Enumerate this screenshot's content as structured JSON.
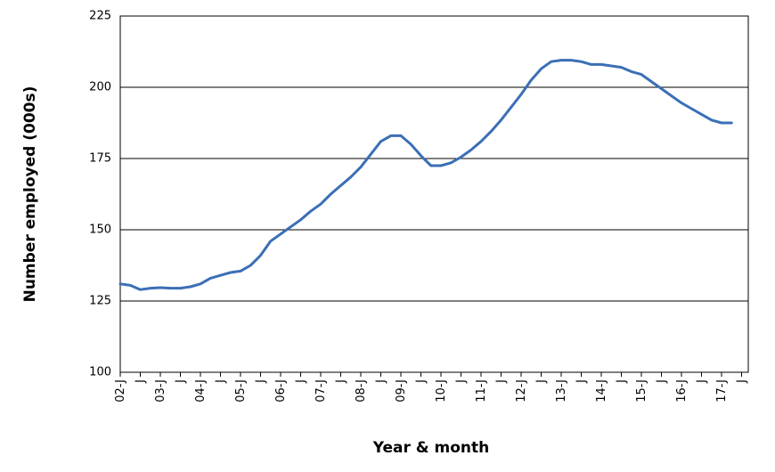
{
  "chart_data": {
    "type": "line",
    "ylabel": "Number employed (000s)",
    "xlabel": "Year & month",
    "categories": [
      "02-J",
      null,
      "J",
      null,
      "03-J",
      null,
      "J",
      null,
      "04-J",
      null,
      "J",
      null,
      "05-J",
      null,
      "J",
      null,
      "06-J",
      null,
      "J",
      null,
      "07-J",
      null,
      "J",
      null,
      "08-J",
      null,
      "J",
      null,
      "09-J",
      null,
      "J",
      null,
      "10-J",
      null,
      "J",
      null,
      "11-J",
      null,
      "J",
      null,
      "12-J",
      null,
      "J",
      null,
      "13-J",
      null,
      "J",
      null,
      "14-J",
      null,
      "J",
      null,
      "15-J",
      null,
      "J",
      null,
      "16-J",
      null,
      "J",
      null,
      "17-J",
      null,
      "J",
      null
    ],
    "values": [
      131,
      130.5,
      129,
      129.5,
      129.7,
      129.5,
      129.5,
      130,
      131,
      133,
      134,
      135,
      135.5,
      137.5,
      141,
      146,
      148.5,
      151,
      153.5,
      156.5,
      159,
      162.5,
      165.5,
      168.5,
      172,
      176.5,
      181,
      183,
      183,
      180,
      176,
      172.5,
      172.5,
      173.5,
      175.5,
      178,
      181,
      184.5,
      188.5,
      193,
      197.5,
      202.5,
      206.5,
      209,
      209.5,
      209.5,
      209,
      208,
      208,
      207.5,
      207,
      205.5,
      204.5,
      202,
      199.5,
      197,
      194.5,
      192.5,
      190.5,
      188.5,
      187.5,
      187.5,
      null,
      null
    ],
    "color": "#3b6fb6",
    "ylim": [
      100,
      225
    ],
    "yticks": [
      100,
      125,
      150,
      175,
      200,
      225
    ],
    "grid": true
  }
}
